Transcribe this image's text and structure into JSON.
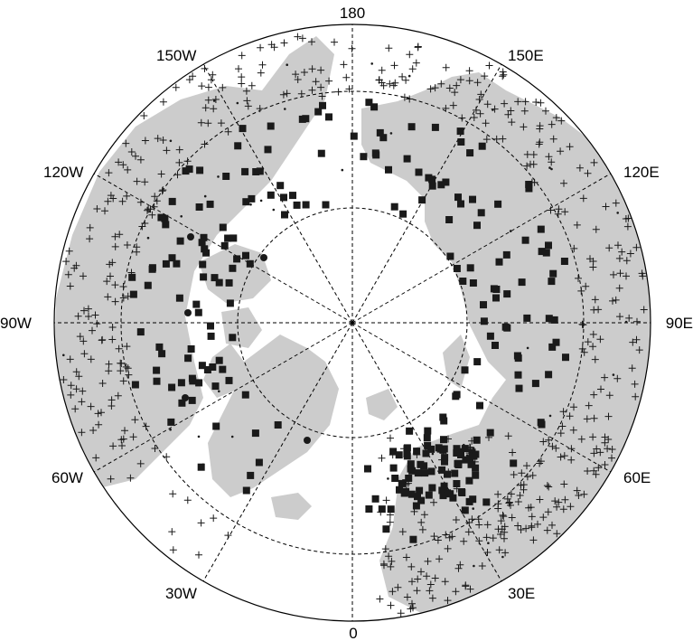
{
  "map": {
    "projection": "north-polar-stereographic",
    "colors": {
      "land": "#cccccc",
      "ocean": "#ffffff",
      "outline": "#000000",
      "grid": "#000000",
      "station_marker": "#1a1a1a"
    },
    "longitude_labels": {
      "lon_0": "0",
      "lon_30e": "30E",
      "lon_60e": "60E",
      "lon_90e": "90E",
      "lon_120e": "120E",
      "lon_150e": "150E",
      "lon_180": "180",
      "lon_150w": "150W",
      "lon_120w": "120W",
      "lon_90w": "90W",
      "lon_60w": "60W",
      "lon_30w": "30W"
    },
    "latitude_circles_visible": 3,
    "meridians_visible": 12,
    "marker_types": [
      "filled-square",
      "plus",
      "filled-circle",
      "small-dot"
    ]
  }
}
